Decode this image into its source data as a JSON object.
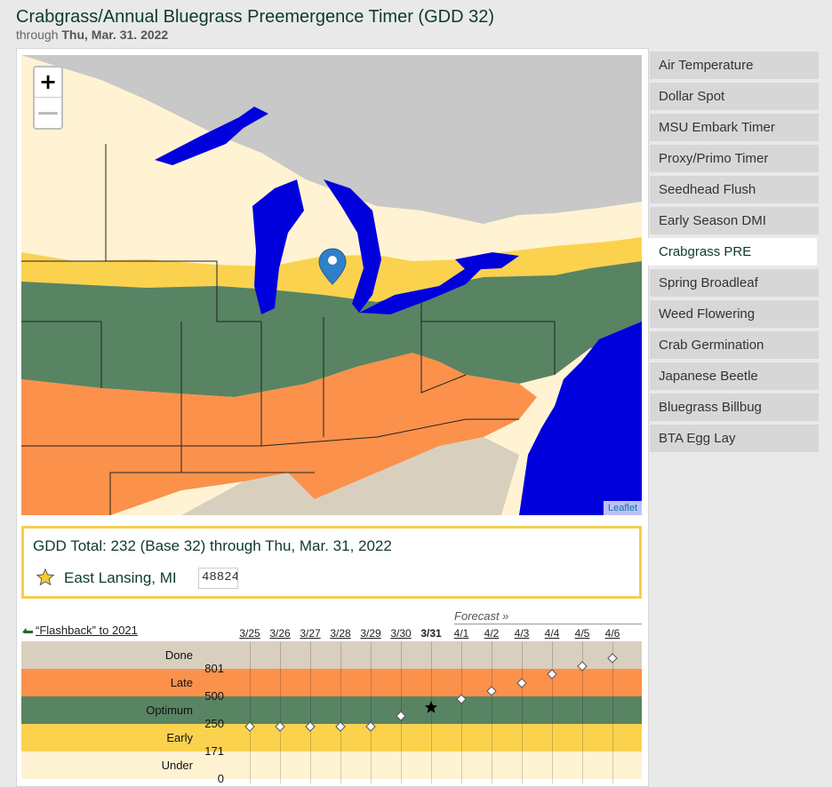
{
  "header": {
    "title": "Crabgrass/Annual Bluegrass Preemergence Timer (GDD 32)",
    "subtitle_prefix": "through",
    "subtitle_date": "Thu, Mar. 31. 2022"
  },
  "map": {
    "zoom_in_label": "+",
    "zoom_out_label": "—",
    "attribution": "Leaflet",
    "colors": {
      "water": "#0000dd",
      "done": "#d9cfbf",
      "late": "#fb914b",
      "optimum": "#588463",
      "early": "#fbd24e",
      "under": "#fff3d3",
      "background": "#c8c8c8"
    }
  },
  "info": {
    "gdd_total_text": "GDD Total: 232 (Base 32) through Thu, Mar. 31, 2022",
    "location": "East Lansing, MI",
    "zip_value": "48824"
  },
  "timeline": {
    "flashback_label": "“Flashback” to 2021",
    "forecast_label": "Forecast »",
    "dates": [
      "3/25",
      "3/26",
      "3/27",
      "3/28",
      "3/29",
      "3/30",
      "3/31",
      "4/1",
      "4/2",
      "4/3",
      "4/4",
      "4/5",
      "4/6"
    ],
    "today": "3/31",
    "bands": [
      {
        "label": "Done",
        "color": "#d9cfbf"
      },
      {
        "label": "Late",
        "color": "#fb914b"
      },
      {
        "label": "Optimum",
        "color": "#588463"
      },
      {
        "label": "Early",
        "color": "#fbd24e"
      },
      {
        "label": "Under",
        "color": "#fff3d3"
      }
    ],
    "thresholds": [
      "801",
      "500",
      "250",
      "171",
      "0"
    ],
    "marker_levels": [
      0.38,
      0.38,
      0.38,
      0.38,
      0.38,
      0.46,
      0.52,
      0.58,
      0.64,
      0.7,
      0.76,
      0.82,
      0.88
    ]
  },
  "sidebar": {
    "items": [
      {
        "label": "Air Temperature",
        "active": false
      },
      {
        "label": "Dollar Spot",
        "active": false
      },
      {
        "label": "MSU Embark Timer",
        "active": false
      },
      {
        "label": "Proxy/Primo Timer",
        "active": false
      },
      {
        "label": "Seedhead Flush",
        "active": false
      },
      {
        "label": "Early Season DMI",
        "active": false
      },
      {
        "label": "Crabgrass PRE",
        "active": true
      },
      {
        "label": "Spring Broadleaf",
        "active": false
      },
      {
        "label": "Weed Flowering",
        "active": false
      },
      {
        "label": "Crab Germination",
        "active": false
      },
      {
        "label": "Japanese Beetle",
        "active": false
      },
      {
        "label": "Bluegrass Billbug",
        "active": false
      },
      {
        "label": "BTA Egg Lay",
        "active": false
      }
    ]
  }
}
